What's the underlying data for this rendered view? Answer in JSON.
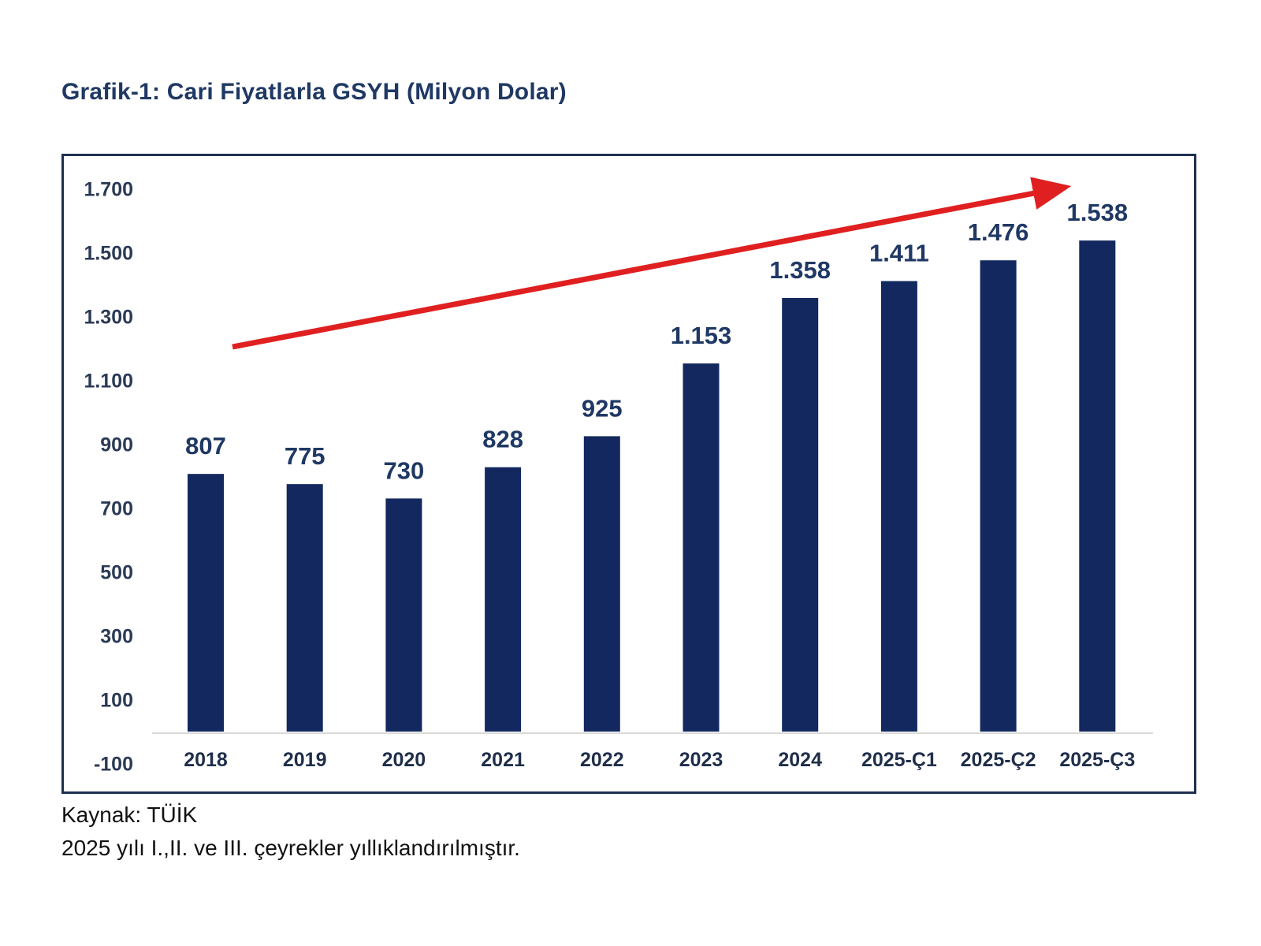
{
  "title": "Grafik-1: Cari Fiyatlarla GSYH (Milyon Dolar)",
  "footer": {
    "source": "Kaynak: TÜİK",
    "note": "2025 yılı I.,II. ve III. çeyrekler yıllıklandırılmıştır."
  },
  "colors": {
    "bar": "#12285e",
    "title_text": "#1f3864",
    "value_label": "#1f3864",
    "y_axis_label": "#2b3a55",
    "x_axis_label": "#1f2e4a",
    "trend_arrow": "#e02020",
    "axis_baseline": "#d9d9d9",
    "frame_border": "#1f3050",
    "footer_text": "#111111"
  },
  "chart_data": {
    "type": "bar",
    "title": "Grafik-1: Cari Fiyatlarla GSYH (Milyon Dolar)",
    "xlabel": "",
    "ylabel": "",
    "categories": [
      "2018",
      "2019",
      "2020",
      "2021",
      "2022",
      "2023",
      "2024",
      "2025-Ç1",
      "2025-Ç2",
      "2025-Ç3"
    ],
    "values": [
      807,
      775,
      730,
      828,
      925,
      1153,
      1358,
      1411,
      1476,
      1538
    ],
    "value_labels": [
      "807",
      "775",
      "730",
      "828",
      "925",
      "1.153",
      "1.358",
      "1.411",
      "1.476",
      "1.538"
    ],
    "y_ticks": [
      1700,
      1500,
      1300,
      1100,
      900,
      700,
      500,
      300,
      100,
      -100
    ],
    "y_tick_labels": [
      "1.700",
      "1.500",
      "1.300",
      "1.100",
      "900",
      "700",
      "500",
      "300",
      "100",
      "-100"
    ],
    "ylim": [
      -100,
      1700
    ],
    "grid": false,
    "legend_position": "none",
    "annotations": [
      {
        "name": "trend-arrow",
        "type": "arrow",
        "direction": "up-right",
        "color": "#e02020"
      }
    ],
    "source_note": "Kaynak: TÜİK",
    "footnote": "2025 yılı I.,II. ve III. çeyrekler yıllıklandırılmıştır."
  }
}
